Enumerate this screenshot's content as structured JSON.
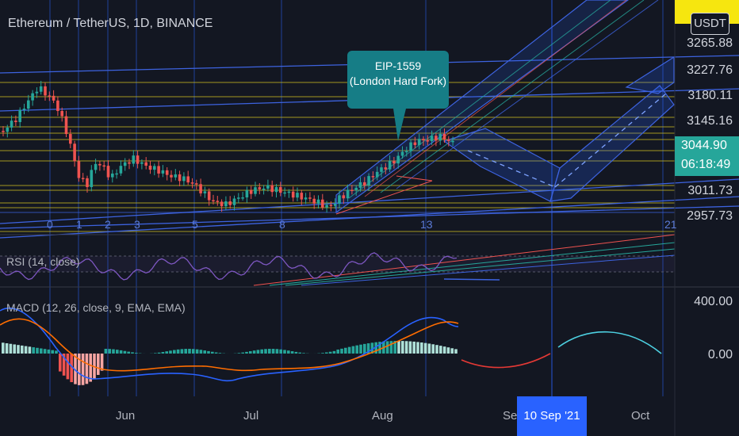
{
  "chart_data": {
    "type": "candlestick",
    "title": "Ethereum / TetherUS, 1D, BINANCE",
    "currency": "USDT",
    "price_axis": {
      "ticks": [
        "3265.88",
        "3227.76",
        "3180.11",
        "3145.16",
        "3011.73",
        "2957.73"
      ],
      "last_price": "3044.90",
      "countdown": "06:18:49"
    },
    "x_axis": {
      "ticks": [
        "Jun",
        "Jul",
        "Aug",
        "Sep",
        "Oct"
      ],
      "highlighted": "10 Sep '21"
    },
    "annotation": {
      "line1": "EIP-1559",
      "line2": "(London Hard Fork)"
    },
    "wave_labels": [
      "0",
      "1",
      "2",
      "3",
      "5",
      "8",
      "13",
      "21"
    ],
    "rsi": {
      "label": "RSI (14, close)"
    },
    "macd": {
      "label": "MACD (12, 26, close, 9, EMA, EMA)",
      "ticks": [
        "400.00",
        "0.00"
      ]
    },
    "colors": {
      "background": "#131722",
      "up": "#26a69a",
      "down": "#ef5350",
      "grid_blue": "#2962ff",
      "fib_yellow": "#f6e60f",
      "macd_line": "#2962ff",
      "signal_line": "#ff6d00",
      "rsi_line": "#7e57c2"
    }
  }
}
